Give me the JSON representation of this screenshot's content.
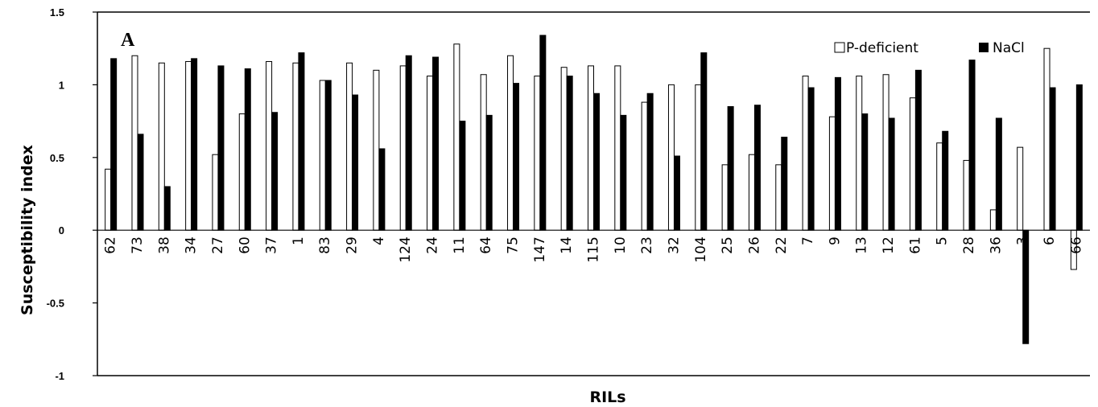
{
  "chart_data": {
    "type": "bar",
    "panel_label": "A",
    "xlabel": "RILs",
    "ylabel": "Susceptibility index",
    "ylim": [
      -1,
      1.5
    ],
    "yticks": [
      "1.5",
      "1",
      "0.5",
      "0",
      "-0.5",
      "-1"
    ],
    "grid": false,
    "legend_position": "top-right",
    "categories": [
      "62",
      "73",
      "38",
      "34",
      "27",
      "60",
      "37",
      "1",
      "83",
      "29",
      "4",
      "124",
      "24",
      "11",
      "64",
      "75",
      "147",
      "14",
      "115",
      "10",
      "23",
      "32",
      "104",
      "25",
      "26",
      "22",
      "7",
      "9",
      "13",
      "12",
      "61",
      "5",
      "28",
      "36",
      "3",
      "6",
      "66"
    ],
    "series": [
      {
        "name": "P-deficient",
        "color": "#ffffff",
        "values": [
          0.42,
          1.2,
          1.15,
          1.16,
          0.52,
          0.8,
          1.16,
          1.15,
          1.03,
          1.15,
          1.1,
          1.13,
          1.06,
          1.28,
          1.07,
          1.2,
          1.06,
          1.12,
          1.13,
          1.13,
          0.88,
          1.0,
          1.0,
          0.45,
          0.52,
          0.45,
          1.06,
          0.78,
          1.06,
          1.07,
          0.91,
          0.6,
          0.48,
          0.14,
          0.57,
          1.25,
          -0.27
        ]
      },
      {
        "name": "NaCl",
        "color": "#000000",
        "values": [
          1.18,
          0.66,
          0.3,
          1.18,
          1.13,
          1.11,
          0.81,
          1.22,
          1.03,
          0.93,
          0.56,
          1.2,
          1.19,
          0.75,
          0.79,
          1.01,
          1.34,
          1.06,
          0.94,
          0.79,
          0.94,
          0.51,
          1.22,
          0.85,
          0.86,
          0.64,
          0.98,
          1.05,
          0.8,
          0.77,
          1.1,
          0.68,
          1.17,
          0.77,
          -0.78,
          0.98,
          1.0
        ]
      }
    ]
  }
}
